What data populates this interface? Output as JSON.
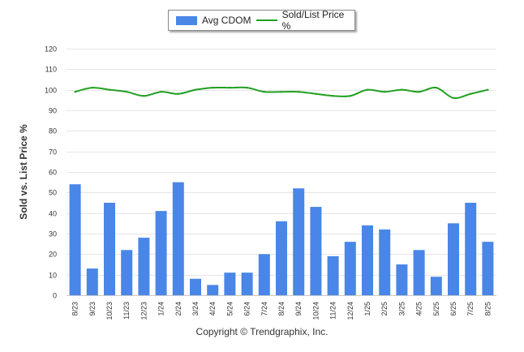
{
  "chart_data": {
    "type": "bar",
    "ylabel": "Sold vs. List Price %",
    "ylim": [
      0,
      120
    ],
    "yticks": [
      0,
      10,
      20,
      30,
      40,
      50,
      60,
      70,
      80,
      90,
      100,
      110,
      120
    ],
    "grid": true,
    "legend_position": "top-center",
    "categories": [
      "8/23",
      "9/23",
      "10/23",
      "11/23",
      "12/23",
      "1/24",
      "2/24",
      "3/24",
      "4/24",
      "5/24",
      "6/24",
      "7/24",
      "8/24",
      "9/24",
      "10/24",
      "11/24",
      "12/24",
      "1/25",
      "2/25",
      "3/25",
      "4/25",
      "5/25",
      "6/25",
      "7/25",
      "8/25"
    ],
    "series": [
      {
        "name": "Avg CDOM",
        "kind": "bar",
        "color": "#4a86e8",
        "values": [
          54,
          13,
          45,
          22,
          28,
          41,
          55,
          8,
          5,
          11,
          11,
          20,
          36,
          52,
          43,
          19,
          26,
          34,
          32,
          15,
          22,
          9,
          35,
          45,
          26
        ]
      },
      {
        "name": "Sold/List Price %",
        "kind": "line",
        "color": "#22a022",
        "values": [
          99,
          101,
          100,
          99,
          97,
          99,
          98,
          100,
          101,
          101,
          101,
          99,
          99,
          99,
          98,
          97,
          97,
          100,
          99,
          100,
          99,
          101,
          96,
          98,
          100
        ]
      }
    ]
  },
  "footer": {
    "credit": "Copyright © Trendgraphix, Inc."
  }
}
